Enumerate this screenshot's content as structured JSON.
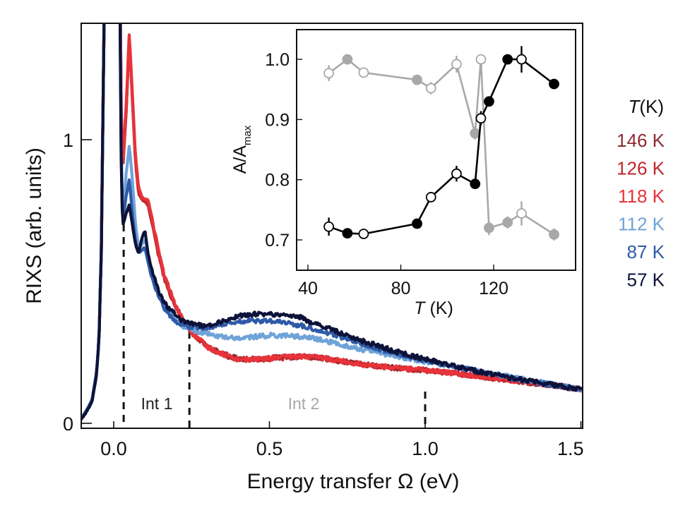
{
  "chart_data": [
    {
      "type": "line",
      "id": "main",
      "title": "",
      "xlabel": "Energy transfer Ω (eV)",
      "ylabel": "RIXS (arb. units)",
      "xlim": [
        -0.104,
        1.5
      ],
      "ylim": [
        0,
        1.41
      ],
      "xticks": [
        0.0,
        0.5,
        1.0,
        1.5
      ],
      "xtick_labels": [
        "0.0",
        "0.5",
        "1.0",
        "1.5"
      ],
      "yticks": [
        0,
        1
      ],
      "ytick_labels": [
        "0",
        "1"
      ],
      "grid": false,
      "legend": {
        "title": "T(K)",
        "placement": "right-outside",
        "entries": [
          "146 K",
          "126 K",
          "118 K",
          "112 K",
          "87 K",
          "57 K"
        ]
      },
      "vlines": [
        {
          "x": 0.032,
          "style": "dashed"
        },
        {
          "x": 0.243,
          "style": "dashed"
        },
        {
          "x": 1.0,
          "style": "dashed"
        }
      ],
      "annotations": [
        {
          "text": "Int 1",
          "x": 0.137,
          "y": 0.06,
          "color": "#222222"
        },
        {
          "text": "Int 2",
          "x": 0.62,
          "y": 0.06,
          "color": "#a8a8a8"
        }
      ],
      "x": [
        -0.104,
        -0.09,
        -0.07,
        -0.055,
        -0.047,
        -0.04,
        -0.03,
        -0.02,
        0.0,
        0.015,
        0.02,
        0.025,
        0.03,
        0.04,
        0.05,
        0.06,
        0.07,
        0.08,
        0.09,
        0.1,
        0.11,
        0.12,
        0.14,
        0.16,
        0.18,
        0.2,
        0.22,
        0.25,
        0.3,
        0.35,
        0.4,
        0.45,
        0.5,
        0.55,
        0.6,
        0.65,
        0.7,
        0.75,
        0.8,
        0.9,
        1.0,
        1.1,
        1.2,
        1.3,
        1.4,
        1.5
      ],
      "series": [
        {
          "name": "146 K",
          "color": "#8b2a33",
          "values": [
            0.02,
            0.04,
            0.08,
            0.18,
            0.3,
            0.6,
            1.5,
            3.0,
            5.0,
            3.0,
            1.6,
            1.0,
            0.92,
            1.1,
            1.36,
            1.15,
            0.93,
            0.82,
            0.8,
            0.79,
            0.78,
            0.73,
            0.62,
            0.53,
            0.46,
            0.41,
            0.37,
            0.32,
            0.27,
            0.245,
            0.228,
            0.226,
            0.23,
            0.233,
            0.235,
            0.232,
            0.225,
            0.215,
            0.207,
            0.196,
            0.187,
            0.175,
            0.162,
            0.148,
            0.135,
            0.12
          ]
        },
        {
          "name": "126 K",
          "color": "#c0282f",
          "values": [
            0.02,
            0.04,
            0.08,
            0.18,
            0.3,
            0.6,
            1.5,
            3.0,
            5.0,
            3.0,
            1.6,
            1.0,
            0.91,
            1.1,
            1.37,
            1.14,
            0.92,
            0.81,
            0.79,
            0.78,
            0.77,
            0.72,
            0.61,
            0.52,
            0.46,
            0.41,
            0.37,
            0.32,
            0.27,
            0.243,
            0.226,
            0.224,
            0.228,
            0.232,
            0.236,
            0.232,
            0.226,
            0.216,
            0.207,
            0.195,
            0.187,
            0.176,
            0.163,
            0.149,
            0.136,
            0.12
          ]
        },
        {
          "name": "118 K",
          "color": "#e8333a",
          "values": [
            0.02,
            0.04,
            0.08,
            0.18,
            0.3,
            0.6,
            1.5,
            3.0,
            5.0,
            3.0,
            1.6,
            1.0,
            0.93,
            1.12,
            1.38,
            1.16,
            0.94,
            0.83,
            0.8,
            0.79,
            0.79,
            0.74,
            0.63,
            0.53,
            0.47,
            0.41,
            0.37,
            0.32,
            0.27,
            0.245,
            0.226,
            0.225,
            0.23,
            0.234,
            0.236,
            0.233,
            0.226,
            0.217,
            0.207,
            0.196,
            0.188,
            0.176,
            0.163,
            0.149,
            0.136,
            0.121
          ]
        },
        {
          "name": "112 K",
          "color": "#6fa3d8",
          "values": [
            0.02,
            0.04,
            0.08,
            0.18,
            0.3,
            0.6,
            1.5,
            3.0,
            5.0,
            3.0,
            1.5,
            0.85,
            0.74,
            0.88,
            0.98,
            0.86,
            0.7,
            0.62,
            0.63,
            0.65,
            0.6,
            0.54,
            0.47,
            0.42,
            0.39,
            0.36,
            0.345,
            0.33,
            0.315,
            0.305,
            0.3,
            0.305,
            0.31,
            0.31,
            0.305,
            0.298,
            0.285,
            0.272,
            0.26,
            0.238,
            0.218,
            0.2,
            0.178,
            0.158,
            0.139,
            0.12
          ]
        },
        {
          "name": "87 K",
          "color": "#2e5aa8",
          "values": [
            0.02,
            0.04,
            0.08,
            0.18,
            0.3,
            0.6,
            1.5,
            3.0,
            5.0,
            3.0,
            1.5,
            0.82,
            0.72,
            0.8,
            0.86,
            0.74,
            0.64,
            0.6,
            0.61,
            0.62,
            0.57,
            0.52,
            0.46,
            0.41,
            0.38,
            0.36,
            0.35,
            0.34,
            0.338,
            0.35,
            0.36,
            0.362,
            0.36,
            0.355,
            0.345,
            0.33,
            0.315,
            0.298,
            0.28,
            0.248,
            0.222,
            0.2,
            0.176,
            0.155,
            0.136,
            0.12
          ]
        },
        {
          "name": "57 K",
          "color": "#0d1238",
          "values": [
            0.015,
            0.035,
            0.075,
            0.17,
            0.3,
            0.6,
            1.5,
            3.0,
            5.0,
            3.0,
            1.45,
            0.8,
            0.7,
            0.74,
            0.77,
            0.7,
            0.63,
            0.6,
            0.65,
            0.68,
            0.6,
            0.55,
            0.48,
            0.43,
            0.4,
            0.385,
            0.36,
            0.35,
            0.343,
            0.36,
            0.378,
            0.385,
            0.385,
            0.382,
            0.373,
            0.35,
            0.33,
            0.31,
            0.29,
            0.255,
            0.226,
            0.2,
            0.176,
            0.155,
            0.137,
            0.12
          ]
        }
      ]
    },
    {
      "type": "line",
      "id": "inset",
      "title": "",
      "xlabel": "T (K)",
      "ylabel": "A/Amax",
      "ylabel_main": "A/A",
      "ylabel_sub": "max",
      "xlim": [
        35,
        151
      ],
      "ylim": [
        0.654,
        1.052
      ],
      "xticks": [
        40,
        80,
        120
      ],
      "xtick_labels": [
        "40",
        "80",
        "120"
      ],
      "yticks": [
        0.7,
        0.8,
        0.9,
        1.0
      ],
      "ytick_labels": [
        "0.7",
        "0.8",
        "0.9",
        "1.0"
      ],
      "grid": false,
      "series": [
        {
          "name": "Int 1",
          "color": "#000000",
          "points": [
            {
              "T": 49,
              "y": 0.722,
              "err": 0.015,
              "filled": false
            },
            {
              "T": 57,
              "y": 0.711,
              "err": 0.004,
              "filled": true
            },
            {
              "T": 64,
              "y": 0.71,
              "err": 0.004,
              "filled": false
            },
            {
              "T": 87,
              "y": 0.727,
              "err": 0.004,
              "filled": true
            },
            {
              "T": 93,
              "y": 0.771,
              "err": 0.004,
              "filled": false
            },
            {
              "T": 104,
              "y": 0.81,
              "err": 0.013,
              "filled": false
            },
            {
              "T": 112,
              "y": 0.793,
              "err": 0.004,
              "filled": true
            },
            {
              "T": 114.5,
              "y": 0.902,
              "err": 0.012,
              "filled": false
            },
            {
              "T": 118,
              "y": 0.93,
              "err": 0.004,
              "filled": true
            },
            {
              "T": 126,
              "y": 1.0,
              "err": 0.004,
              "filled": true
            },
            {
              "T": 132,
              "y": 1.0,
              "err": 0.022,
              "filled": false
            },
            {
              "T": 146,
              "y": 0.959,
              "err": 0.004,
              "filled": true
            }
          ]
        },
        {
          "name": "Int 2",
          "color": "#a8a8a8",
          "points": [
            {
              "T": 49,
              "y": 0.977,
              "err": 0.013,
              "filled": false
            },
            {
              "T": 57,
              "y": 1.0,
              "err": 0.004,
              "filled": true
            },
            {
              "T": 64,
              "y": 0.978,
              "err": 0.008,
              "filled": false
            },
            {
              "T": 87,
              "y": 0.966,
              "err": 0.004,
              "filled": true
            },
            {
              "T": 93,
              "y": 0.952,
              "err": 0.01,
              "filled": false
            },
            {
              "T": 104,
              "y": 0.992,
              "err": 0.014,
              "filled": false
            },
            {
              "T": 112,
              "y": 0.877,
              "err": 0.01,
              "filled": true
            },
            {
              "T": 114.5,
              "y": 1.0,
              "err": 0.006,
              "filled": false
            },
            {
              "T": 118,
              "y": 0.72,
              "err": 0.012,
              "filled": true
            },
            {
              "T": 126,
              "y": 0.729,
              "err": 0.01,
              "filled": true
            },
            {
              "T": 132,
              "y": 0.744,
              "err": 0.02,
              "filled": false
            },
            {
              "T": 146,
              "y": 0.709,
              "err": 0.01,
              "filled": true
            }
          ]
        }
      ]
    }
  ],
  "legend": {
    "title_italic": "T",
    "title_rest": "(K)",
    "entries": [
      {
        "label": "146 K",
        "color": "#8b2a33"
      },
      {
        "label": "126 K",
        "color": "#c0282f"
      },
      {
        "label": "118 K",
        "color": "#e8333a"
      },
      {
        "label": "112 K",
        "color": "#6fa3d8"
      },
      {
        "label": "87 K",
        "color": "#2e5aa8"
      },
      {
        "label": "57 K",
        "color": "#0d1238"
      }
    ]
  },
  "labels": {
    "main_xlabel": "Energy transfer Ω (eV)",
    "main_ylabel": "RIXS (arb. units)",
    "inset_xlabel_italic": "T",
    "inset_xlabel_rest": " (K)",
    "int1": "Int 1",
    "int2": "Int 2"
  }
}
